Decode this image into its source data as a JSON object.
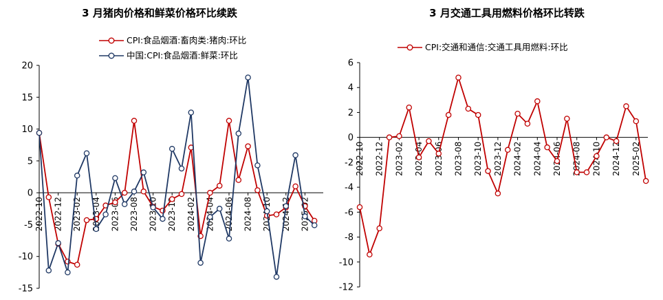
{
  "chart_data": [
    {
      "type": "line",
      "title": "3 月猪肉价格和鲜菜价格环比续跌",
      "ylim": [
        -15,
        20
      ],
      "yticks": [
        -15,
        -10,
        -5,
        0,
        5,
        10,
        15,
        20
      ],
      "xtick_labels": [
        "2022-10",
        "2022-12",
        "2023-02",
        "2023-04",
        "2023-06",
        "2023-08",
        "2023-10",
        "2023-12",
        "2024-02",
        "2024-04",
        "2024-06",
        "2024-08",
        "2024-10",
        "2024-12",
        "2025-02"
      ],
      "x": [
        "2022-10",
        "2022-11",
        "2022-12",
        "2023-01",
        "2023-02",
        "2023-03",
        "2023-04",
        "2023-05",
        "2023-06",
        "2023-07",
        "2023-08",
        "2023-09",
        "2023-10",
        "2023-11",
        "2023-12",
        "2024-01",
        "2024-02",
        "2024-03",
        "2024-04",
        "2024-05",
        "2024-06",
        "2024-07",
        "2024-08",
        "2024-09",
        "2024-10",
        "2024-11",
        "2024-12",
        "2025-01",
        "2025-02",
        "2025-03"
      ],
      "legend_position": "top",
      "series": [
        {
          "name": "CPI:食品烟酒:畜肉类:猪肉:环比",
          "color": "#c00000",
          "values": [
            9.4,
            -0.7,
            -8.0,
            -10.8,
            -11.3,
            -4.3,
            -4.1,
            -2.0,
            -1.5,
            0.0,
            11.3,
            0.2,
            -2.2,
            -2.8,
            -1.0,
            -0.2,
            7.1,
            -6.8,
            0.0,
            1.1,
            11.3,
            2.0,
            7.3,
            0.4,
            -3.6,
            -3.4,
            -2.3,
            1.0,
            -2.1,
            -4.4
          ]
        },
        {
          "name": "中国:CPI:食品烟酒:鲜菜:环比",
          "color": "#1f3864",
          "values": [
            9.4,
            -12.2,
            -7.9,
            -12.5,
            2.7,
            6.2,
            -5.7,
            -3.4,
            2.3,
            -1.8,
            0.2,
            3.2,
            -2.3,
            -4.1,
            6.9,
            3.8,
            12.6,
            -11.0,
            -3.8,
            -2.5,
            -7.2,
            9.3,
            18.1,
            4.3,
            -2.9,
            -13.2,
            -2.1,
            5.9,
            -3.7,
            -5.1
          ]
        }
      ]
    },
    {
      "type": "line",
      "title": "3 月交通工具用燃料价格环比转跌",
      "ylim": [
        -12,
        6
      ],
      "yticks": [
        -12,
        -10,
        -8,
        -6,
        -4,
        -2,
        0,
        2,
        4,
        6
      ],
      "xtick_labels": [
        "2022-10",
        "2022-12",
        "2023-02",
        "2023-04",
        "2023-06",
        "2023-08",
        "2023-10",
        "2023-12",
        "2024-02",
        "2024-04",
        "2024-06",
        "2024-08",
        "2024-10",
        "2024-12",
        "2025-02"
      ],
      "x": [
        "2022-10",
        "2022-11",
        "2022-12",
        "2023-01",
        "2023-02",
        "2023-03",
        "2023-04",
        "2023-05",
        "2023-06",
        "2023-07",
        "2023-08",
        "2023-09",
        "2023-10",
        "2023-11",
        "2023-12",
        "2024-01",
        "2024-02",
        "2024-03",
        "2024-04",
        "2024-05",
        "2024-06",
        "2024-07",
        "2024-08",
        "2024-09",
        "2024-10",
        "2024-11",
        "2024-12",
        "2025-01",
        "2025-02",
        "2025-03"
      ],
      "legend_position": "top",
      "series": [
        {
          "name": "CPI:交通和通信:交通工具用燃料:环比",
          "color": "#c00000",
          "values": [
            -5.6,
            -9.4,
            -7.3,
            0.0,
            0.1,
            2.4,
            -1.6,
            -0.3,
            -1.3,
            1.8,
            4.8,
            2.3,
            1.8,
            -2.7,
            -4.5,
            -1.0,
            1.9,
            1.1,
            2.9,
            -0.8,
            -1.9,
            1.5,
            -2.8,
            -2.8,
            -1.5,
            0.0,
            -0.3,
            2.5,
            1.3,
            -3.5
          ]
        }
      ]
    }
  ]
}
